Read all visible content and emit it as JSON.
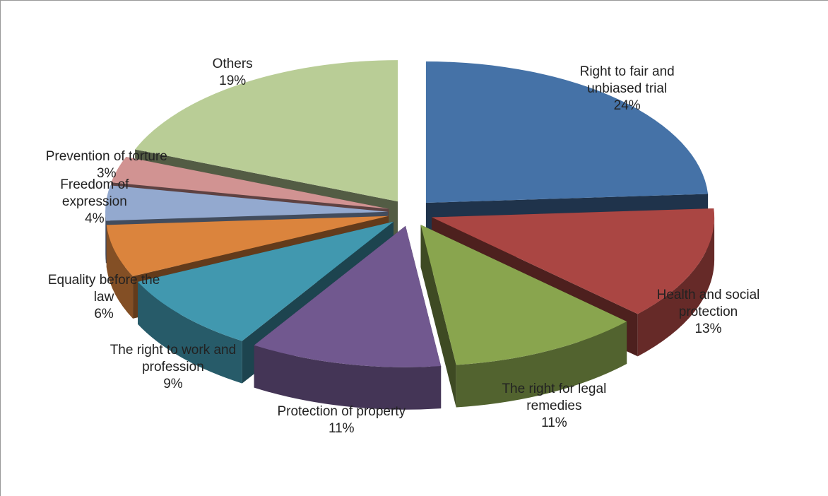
{
  "chart_data": {
    "type": "pie",
    "categories": [
      "Right to fair and unbiased trial",
      "Health and social protection",
      "The right for legal remedies",
      "Protection of property",
      "The right to work and profession",
      "Equality before the law",
      "Freedom of expression",
      "Prevention of torture",
      "Others"
    ],
    "values": [
      24,
      13,
      11,
      11,
      9,
      6,
      4,
      3,
      19
    ],
    "value_labels": [
      "24%",
      "13%",
      "11%",
      "11%",
      "9%",
      "6%",
      "4%",
      "3%",
      "19%"
    ],
    "colors": [
      "#4572a7",
      "#aa4643",
      "#89a54e",
      "#71588f",
      "#4198af",
      "#db843d",
      "#93a9cf",
      "#d19392",
      "#b9cd96"
    ]
  }
}
